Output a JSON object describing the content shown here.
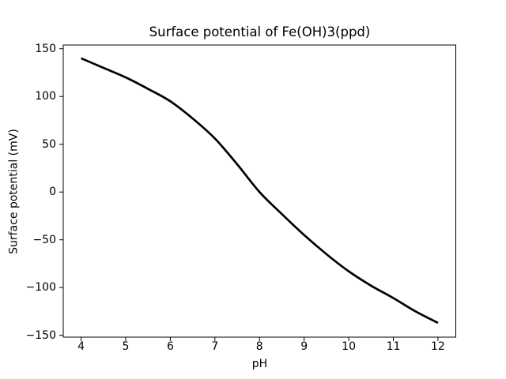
{
  "figure": {
    "background": "#ffffff",
    "text_color": "#000000"
  },
  "chart_data": {
    "type": "line",
    "title": "Surface potential of Fe(OH)3(ppd)",
    "xlabel": "pH",
    "ylabel": "Surface potential (mV)",
    "xlim": [
      3.6,
      12.4
    ],
    "ylim": [
      -151.9,
      153.9
    ],
    "grid": false,
    "legend": "none",
    "line_color": "#000000",
    "line_width": 2.7,
    "spine_color": "#000000",
    "x": [
      4.0,
      4.5,
      5.0,
      5.5,
      6.0,
      6.5,
      7.0,
      7.5,
      8.0,
      8.5,
      9.0,
      9.5,
      10.0,
      10.5,
      11.0,
      11.5,
      12.0
    ],
    "y": [
      140,
      130,
      120,
      108,
      95,
      77,
      56,
      29,
      0,
      -23,
      -45,
      -65,
      -83,
      -98,
      -111,
      -125,
      -137
    ],
    "xticks": [
      {
        "value": 4,
        "label": "4"
      },
      {
        "value": 5,
        "label": "5"
      },
      {
        "value": 6,
        "label": "6"
      },
      {
        "value": 7,
        "label": "7"
      },
      {
        "value": 8,
        "label": "8"
      },
      {
        "value": 9,
        "label": "9"
      },
      {
        "value": 10,
        "label": "10"
      },
      {
        "value": 11,
        "label": "11"
      },
      {
        "value": 12,
        "label": "12"
      }
    ],
    "yticks": [
      {
        "value": 150,
        "label": "150"
      },
      {
        "value": 100,
        "label": "100"
      },
      {
        "value": 50,
        "label": "50"
      },
      {
        "value": 0,
        "label": "0"
      },
      {
        "value": -50,
        "label": "−50"
      },
      {
        "value": -100,
        "label": "−100"
      },
      {
        "value": -150,
        "label": "−150"
      }
    ]
  }
}
